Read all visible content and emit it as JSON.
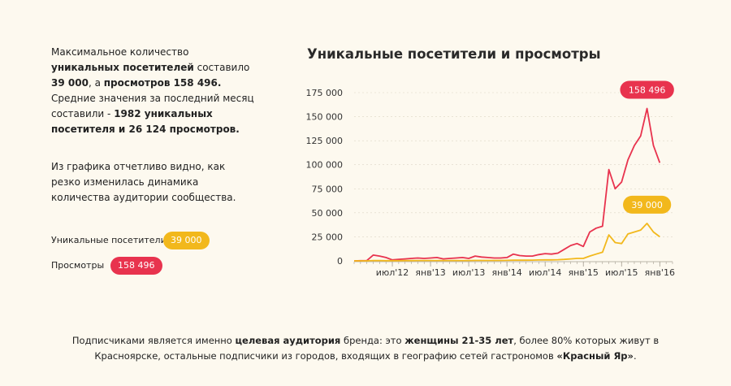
{
  "intro": {
    "p1": [
      {
        "t": "Максимальное количество ",
        "b": false
      },
      {
        "t": "уникальных посетителей",
        "b": true
      },
      {
        "t": " составило ",
        "b": false
      },
      {
        "t": "39 000",
        "b": true
      },
      {
        "t": ", а ",
        "b": false
      },
      {
        "t": "просмотров 158 496.",
        "b": true
      },
      {
        "t": " Средние значения за последний месяц составили - ",
        "b": false
      },
      {
        "t": "1982 уникальных посетителя и 26 124 просмотров.",
        "b": true
      }
    ],
    "p2": "Из графика отчетливо видно, как резко изменилась динамика количества аудитории сообщества."
  },
  "legend": {
    "visitors": {
      "label": "Уникальные посетители",
      "value": "39 000"
    },
    "views": {
      "label": "Просмотры",
      "value": "158 496"
    }
  },
  "colors": {
    "visitors": "#f2b81c",
    "views": "#e8334e",
    "grid": "#ddd6c6",
    "axis": "#a69f92"
  },
  "chart_data": {
    "type": "line",
    "title": "Уникальные посетители и просмотры",
    "yticks": [
      "0",
      "25 000",
      "50 000",
      "75 000",
      "100 000",
      "125 000",
      "150 000",
      "175 000"
    ],
    "ylim": [
      0,
      175000
    ],
    "xticks": [
      "июл'12",
      "янв'13",
      "июл'13",
      "янв'14",
      "июл'14",
      "янв'15",
      "июл'15",
      "янв'16"
    ],
    "x_months": 50,
    "series": [
      {
        "key": "views",
        "values": [
          0,
          200,
          300,
          6000,
          5000,
          3500,
          1000,
          1500,
          2000,
          2500,
          3000,
          2500,
          3000,
          3500,
          2000,
          2500,
          3000,
          3500,
          2500,
          5000,
          4000,
          3500,
          3000,
          3000,
          3500,
          7000,
          5500,
          5000,
          5000,
          6500,
          7500,
          7000,
          8000,
          12000,
          16000,
          18000,
          15000,
          30000,
          34000,
          36000,
          95000,
          75000,
          82000,
          105000,
          120000,
          130000,
          158496,
          120000,
          102000
        ],
        "callout": "158 496",
        "callout_index": 46
      },
      {
        "key": "visitors",
        "values": [
          0,
          0,
          0,
          300,
          250,
          200,
          200,
          200,
          250,
          250,
          300,
          300,
          300,
          300,
          300,
          300,
          300,
          350,
          350,
          400,
          400,
          400,
          450,
          450,
          500,
          700,
          700,
          700,
          800,
          900,
          1000,
          1000,
          1200,
          1500,
          2000,
          2500,
          2500,
          5000,
          7000,
          9000,
          27000,
          19000,
          18000,
          28000,
          30000,
          32000,
          39000,
          30000,
          25000
        ],
        "callout": "39 000",
        "callout_index": 46
      }
    ]
  },
  "footer": [
    {
      "t": "Подписчиками является именно ",
      "b": false
    },
    {
      "t": "целевая аудитория",
      "b": true
    },
    {
      "t": " бренда: это ",
      "b": false
    },
    {
      "t": "женщины 21-35 лет",
      "b": true
    },
    {
      "t": ", более 80% которых живут в",
      "b": false
    },
    {
      "t": "\n",
      "b": false
    },
    {
      "t": "Красноярске, остальные подписчики из городов, входящих в географию сетей гастрономов ",
      "b": false
    },
    {
      "t": "«Красный Яр»",
      "b": true
    },
    {
      "t": ".",
      "b": false
    }
  ]
}
